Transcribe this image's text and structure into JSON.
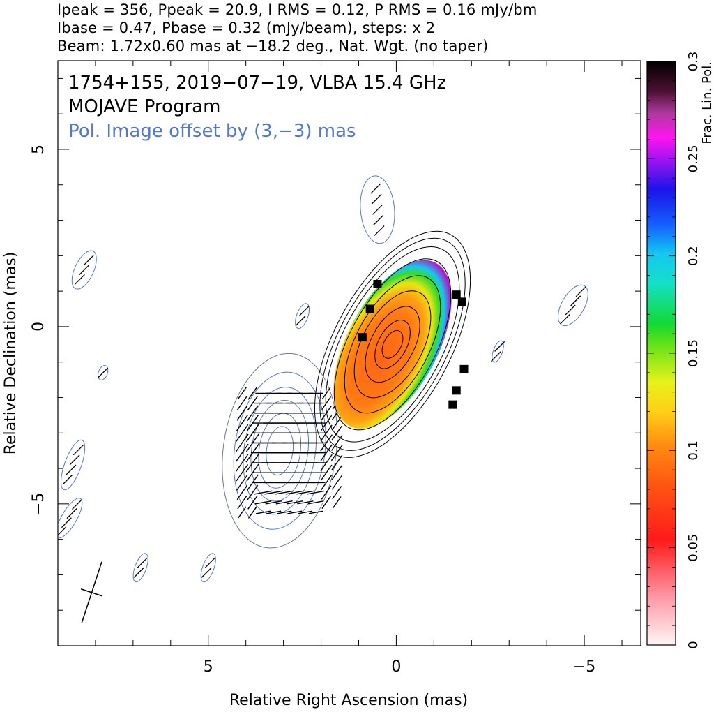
{
  "header": {
    "line1": "Ipeak = 356, Ppeak = 20.9, I RMS = 0.12, P RMS = 0.16 mJy/bm",
    "line2": "Ibase = 0.47, Pbase = 0.32 (mJy/beam), steps: x 2",
    "line3": "Beam: 1.72x0.60 mas at −18.2 deg., Nat. Wgt. (no taper)"
  },
  "chart_data": {
    "type": "contour",
    "annotations": {
      "source": "1754+155, 2019−07−19, VLBA 15.4 GHz",
      "program": "MOJAVE Program",
      "offset_note": "Pol. Image offset by (3,−3) mas"
    },
    "xlabel": "Relative Right Ascension (mas)",
    "ylabel": "Relative Declination (mas)",
    "xlim": [
      9,
      -6.5
    ],
    "ylim": [
      -9,
      7.5
    ],
    "x_ticks": [
      {
        "value": 5,
        "label": "5"
      },
      {
        "value": 0,
        "label": "0"
      },
      {
        "value": -5,
        "label": "−5"
      }
    ],
    "y_ticks": [
      {
        "value": 5,
        "label": "5"
      },
      {
        "value": 0,
        "label": "0"
      },
      {
        "value": -5,
        "label": "−5"
      }
    ],
    "colorbar": {
      "label": "Frac. Lin. Pol.",
      "range": [
        0,
        0.3
      ],
      "ticks": [
        {
          "value": 0,
          "label": "0"
        },
        {
          "value": 0.05,
          "label": "0.05"
        },
        {
          "value": 0.1,
          "label": "0.1"
        },
        {
          "value": 0.15,
          "label": "0.15"
        },
        {
          "value": 0.2,
          "label": "0.2"
        },
        {
          "value": 0.25,
          "label": "0.25"
        },
        {
          "value": 0.3,
          "label": "0.3"
        }
      ]
    },
    "beam": {
      "major_mas": 1.72,
      "minor_mas": 0.6,
      "pa_deg": -18.2,
      "center": [
        8.1,
        -7.5
      ]
    },
    "stokes_i_contours": {
      "color": "#000000",
      "center": [
        0.1,
        -0.5
      ],
      "base_mJy": 0.47,
      "levels": [
        {
          "rx": 3.3,
          "ry": 1.35
        },
        {
          "rx": 3.1,
          "ry": 1.25
        },
        {
          "rx": 2.85,
          "ry": 1.15
        },
        {
          "rx": 2.5,
          "ry": 1.0
        },
        {
          "rx": 2.0,
          "ry": 0.85
        },
        {
          "rx": 1.55,
          "ry": 0.7
        },
        {
          "rx": 1.1,
          "ry": 0.5
        },
        {
          "rx": 0.7,
          "ry": 0.33
        },
        {
          "rx": 0.4,
          "ry": 0.2
        }
      ],
      "tilt_deg": 62
    },
    "pol_intensity_contours": {
      "color": "#5577cc",
      "center": [
        3.1,
        -3.5
      ],
      "levels": [
        {
          "rx": 2.6,
          "ry": 1.5
        },
        {
          "rx": 2.1,
          "ry": 1.2
        },
        {
          "rx": 1.7,
          "ry": 0.95
        },
        {
          "rx": 1.35,
          "ry": 0.75
        },
        {
          "rx": 1.0,
          "ry": 0.55
        },
        {
          "rx": 0.65,
          "ry": 0.35
        }
      ],
      "tilt_deg": 82
    },
    "frac_pol_map": {
      "center": [
        0.1,
        -0.5
      ],
      "region_rx": 2.45,
      "region_ry": 1.05,
      "tilt_deg": 62,
      "core_value": 0.06,
      "edge_value": 0.27
    },
    "evpa_vectors_note": "short black ticks indicating electric vector position angle",
    "isolated_islands": [
      {
        "x": 8.3,
        "y": 1.6,
        "rx": 0.55,
        "ry": 0.25,
        "tilt": 65
      },
      {
        "x": 0.5,
        "y": 3.3,
        "rx": 0.9,
        "ry": 0.45,
        "tilt": 95
      },
      {
        "x": -4.7,
        "y": 0.6,
        "rx": 0.6,
        "ry": 0.3,
        "tilt": 60
      },
      {
        "x": 8.6,
        "y": -3.9,
        "rx": 0.7,
        "ry": 0.22,
        "tilt": 70
      },
      {
        "x": 8.7,
        "y": -5.4,
        "rx": 0.6,
        "ry": 0.2,
        "tilt": 60
      },
      {
        "x": 2.5,
        "y": 0.3,
        "rx": 0.35,
        "ry": 0.15,
        "tilt": 70
      },
      {
        "x": -2.7,
        "y": -0.7,
        "rx": 0.3,
        "ry": 0.12,
        "tilt": 70
      },
      {
        "x": 6.8,
        "y": -6.8,
        "rx": 0.4,
        "ry": 0.15,
        "tilt": 70
      },
      {
        "x": 5.0,
        "y": -6.8,
        "rx": 0.4,
        "ry": 0.15,
        "tilt": 70
      },
      {
        "x": 7.8,
        "y": -1.3,
        "rx": 0.2,
        "ry": 0.12,
        "tilt": 70
      }
    ]
  }
}
